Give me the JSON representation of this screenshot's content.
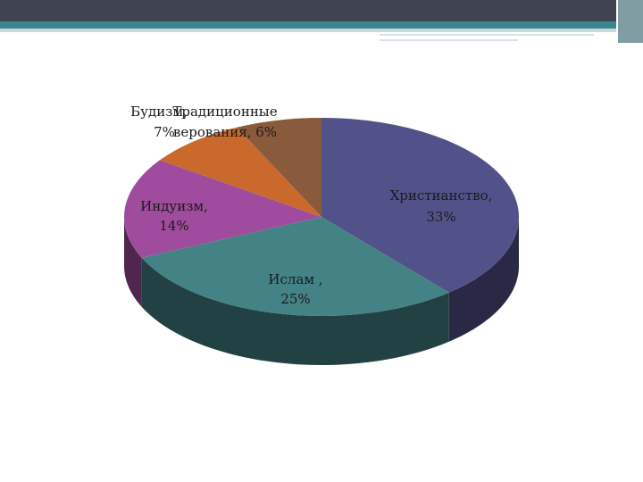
{
  "colors": {
    "christianity": "#52528a",
    "islam": "#438285",
    "hinduism": "#a04c9e",
    "buddhism": "#c96a2c",
    "traditional": "#8a5a3c"
  },
  "chart_data": {
    "type": "pie",
    "title": "",
    "three_d": true,
    "legend": "none",
    "slices": [
      {
        "name": "Христианство",
        "value": 33,
        "label_line1": "Христианство,",
        "label_line2": "33%"
      },
      {
        "name": "Ислам",
        "value": 25,
        "label_line1": "Ислам ,",
        "label_line2": "25%"
      },
      {
        "name": "Индуизм",
        "value": 14,
        "label_line1": "Индуизм,",
        "label_line2": "14%"
      },
      {
        "name": "Будизм",
        "value": 7,
        "label_line1": "Будизм,",
        "label_line2": "7%"
      },
      {
        "name": "Традиционные верования",
        "value": 6,
        "label_line1": "Традиционные",
        "label_line2": "верования, 6%"
      }
    ]
  }
}
